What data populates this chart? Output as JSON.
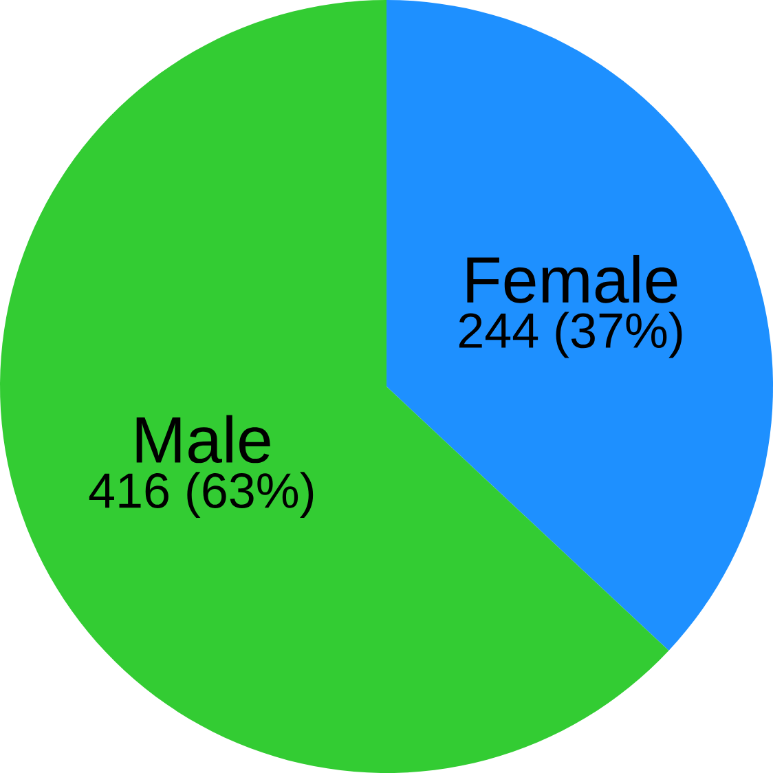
{
  "chart_data": {
    "type": "pie",
    "categories": [
      "Female",
      "Male"
    ],
    "values": [
      244,
      416
    ],
    "colors": [
      "#1e90ff",
      "#33cc33"
    ],
    "value_labels": [
      "244 (37%)",
      "416 (63%)"
    ]
  }
}
